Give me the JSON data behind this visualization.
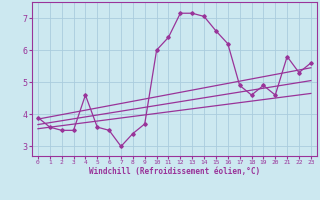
{
  "xlabel": "Windchill (Refroidissement éolien,°C)",
  "ylabel": "",
  "background_color": "#cce8f0",
  "grid_color": "#aaccdd",
  "line_color": "#993399",
  "xlim": [
    -0.5,
    23.5
  ],
  "ylim": [
    2.7,
    7.5
  ],
  "xticks": [
    0,
    1,
    2,
    3,
    4,
    5,
    6,
    7,
    8,
    9,
    10,
    11,
    12,
    13,
    14,
    15,
    16,
    17,
    18,
    19,
    20,
    21,
    22,
    23
  ],
  "yticks": [
    3,
    4,
    5,
    6,
    7
  ],
  "main_series_x": [
    0,
    1,
    2,
    3,
    4,
    5,
    6,
    7,
    8,
    9,
    10,
    11,
    12,
    13,
    14,
    15,
    16,
    17,
    18,
    19,
    20,
    21,
    22,
    23
  ],
  "main_series_y": [
    3.9,
    3.6,
    3.5,
    3.5,
    4.6,
    3.6,
    3.5,
    3.0,
    3.4,
    3.7,
    6.0,
    6.4,
    7.15,
    7.15,
    7.05,
    6.6,
    6.2,
    4.9,
    4.6,
    4.9,
    4.6,
    5.8,
    5.3,
    5.6
  ],
  "trend1_x": [
    0,
    23
  ],
  "trend1_y": [
    3.85,
    5.45
  ],
  "trend2_x": [
    0,
    23
  ],
  "trend2_y": [
    3.55,
    4.65
  ],
  "trend3_x": [
    0,
    23
  ],
  "trend3_y": [
    3.68,
    5.05
  ]
}
